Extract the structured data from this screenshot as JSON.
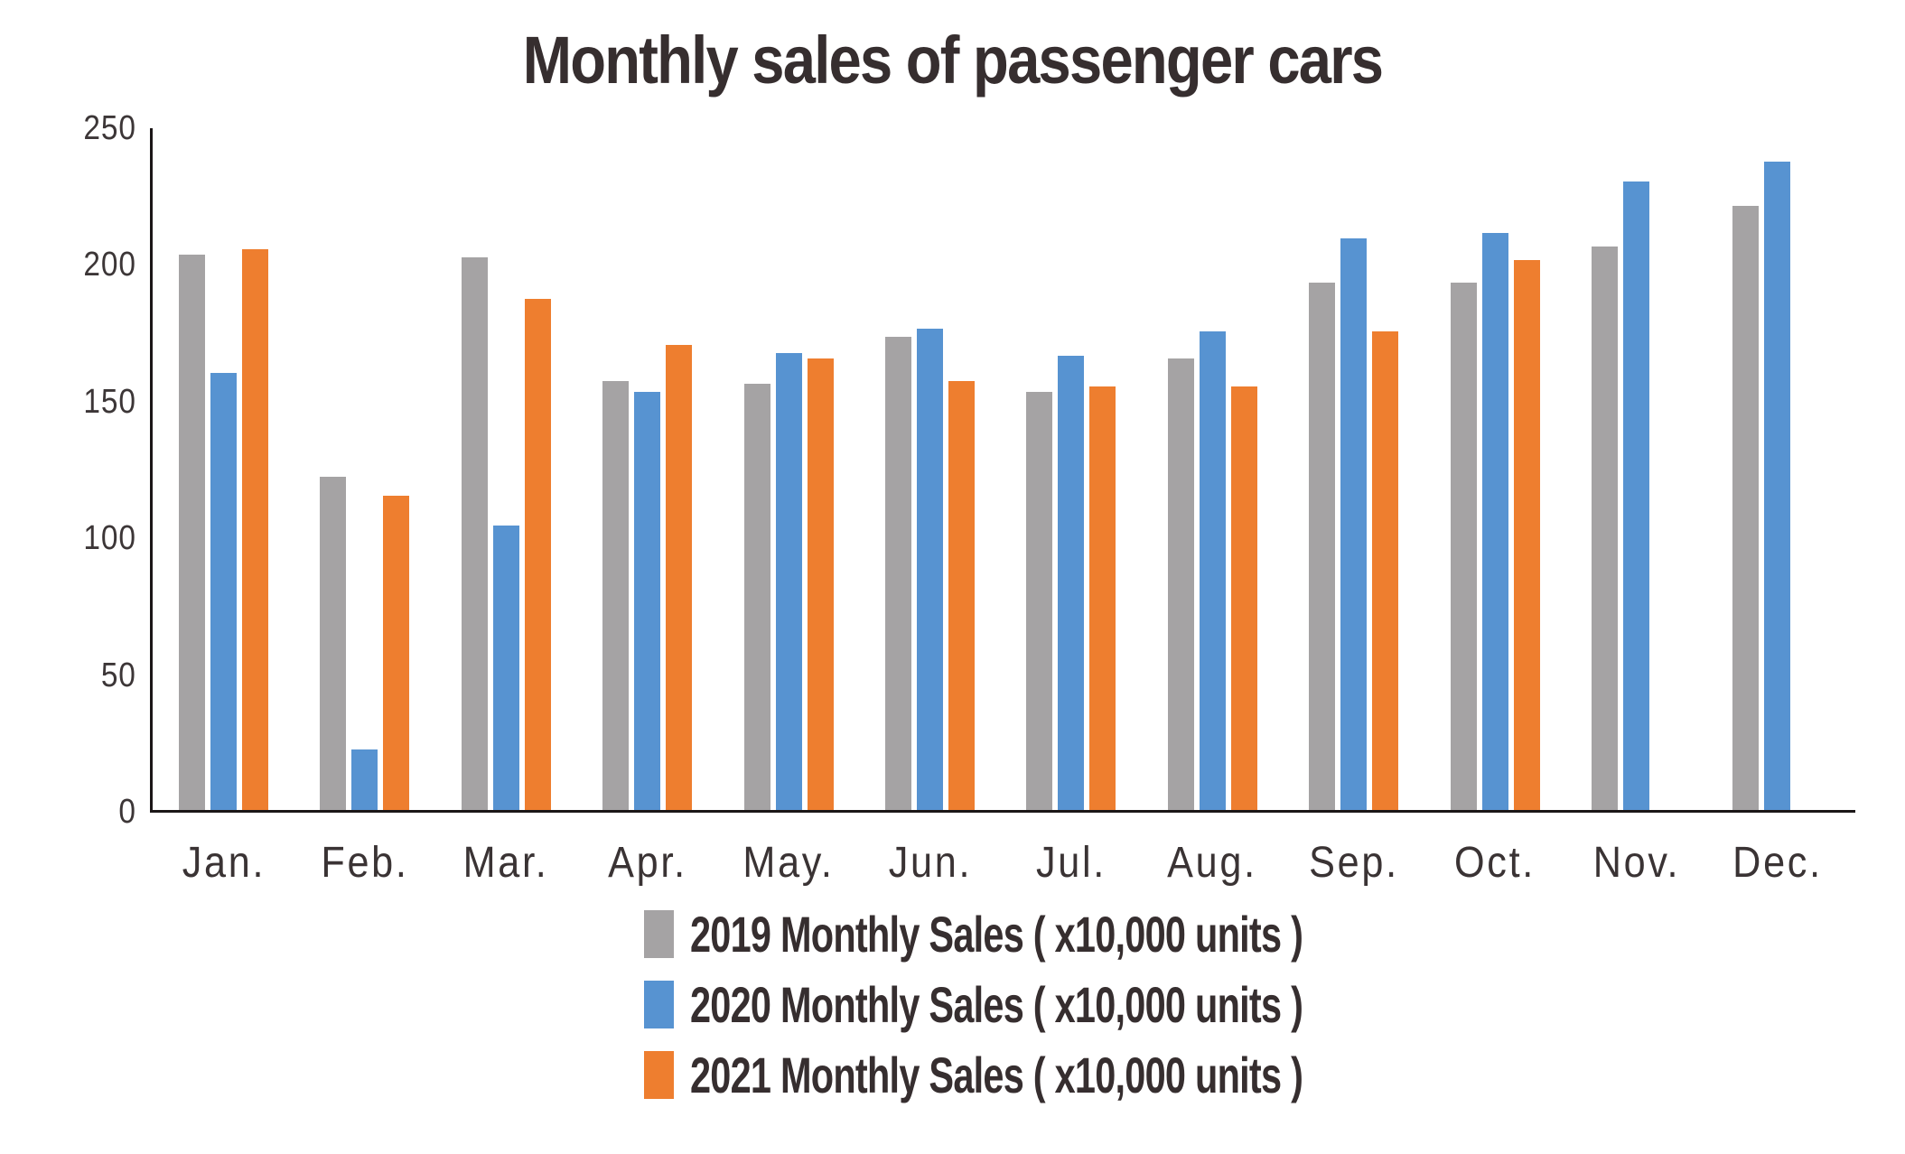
{
  "title": "Monthly sales of passenger cars",
  "chart_data": {
    "type": "bar",
    "title": "Monthly sales of passenger cars",
    "categories": [
      "Jan.",
      "Feb.",
      "Mar.",
      "Apr.",
      "May.",
      "Jun.",
      "Jul.",
      "Aug.",
      "Sep.",
      "Oct.",
      "Nov.",
      "Dec."
    ],
    "series": [
      {
        "name": "2019 Monthly Sales ( x10,000 units )",
        "color": "#a5a3a4",
        "values": [
          203,
          122,
          202,
          157,
          156,
          173,
          153,
          165,
          193,
          193,
          206,
          221
        ]
      },
      {
        "name": "2020 Monthly Sales ( x10,000 units )",
        "color": "#5793d1",
        "values": [
          160,
          22,
          104,
          153,
          167,
          176,
          166,
          175,
          209,
          211,
          230,
          237
        ]
      },
      {
        "name": "2021 Monthly Sales ( x10,000 units )",
        "color": "#ee7e2f",
        "values": [
          205,
          115,
          187,
          170,
          165,
          157,
          155,
          155,
          175,
          201,
          null,
          null
        ]
      }
    ],
    "xlabel": "",
    "ylabel": "",
    "ylim": [
      0,
      250
    ],
    "yticks": [
      0,
      50,
      100,
      150,
      200,
      250
    ],
    "grid": false,
    "legend_position": "bottom"
  },
  "axis_color": "#1b1617",
  "text_color": "#3a3334"
}
